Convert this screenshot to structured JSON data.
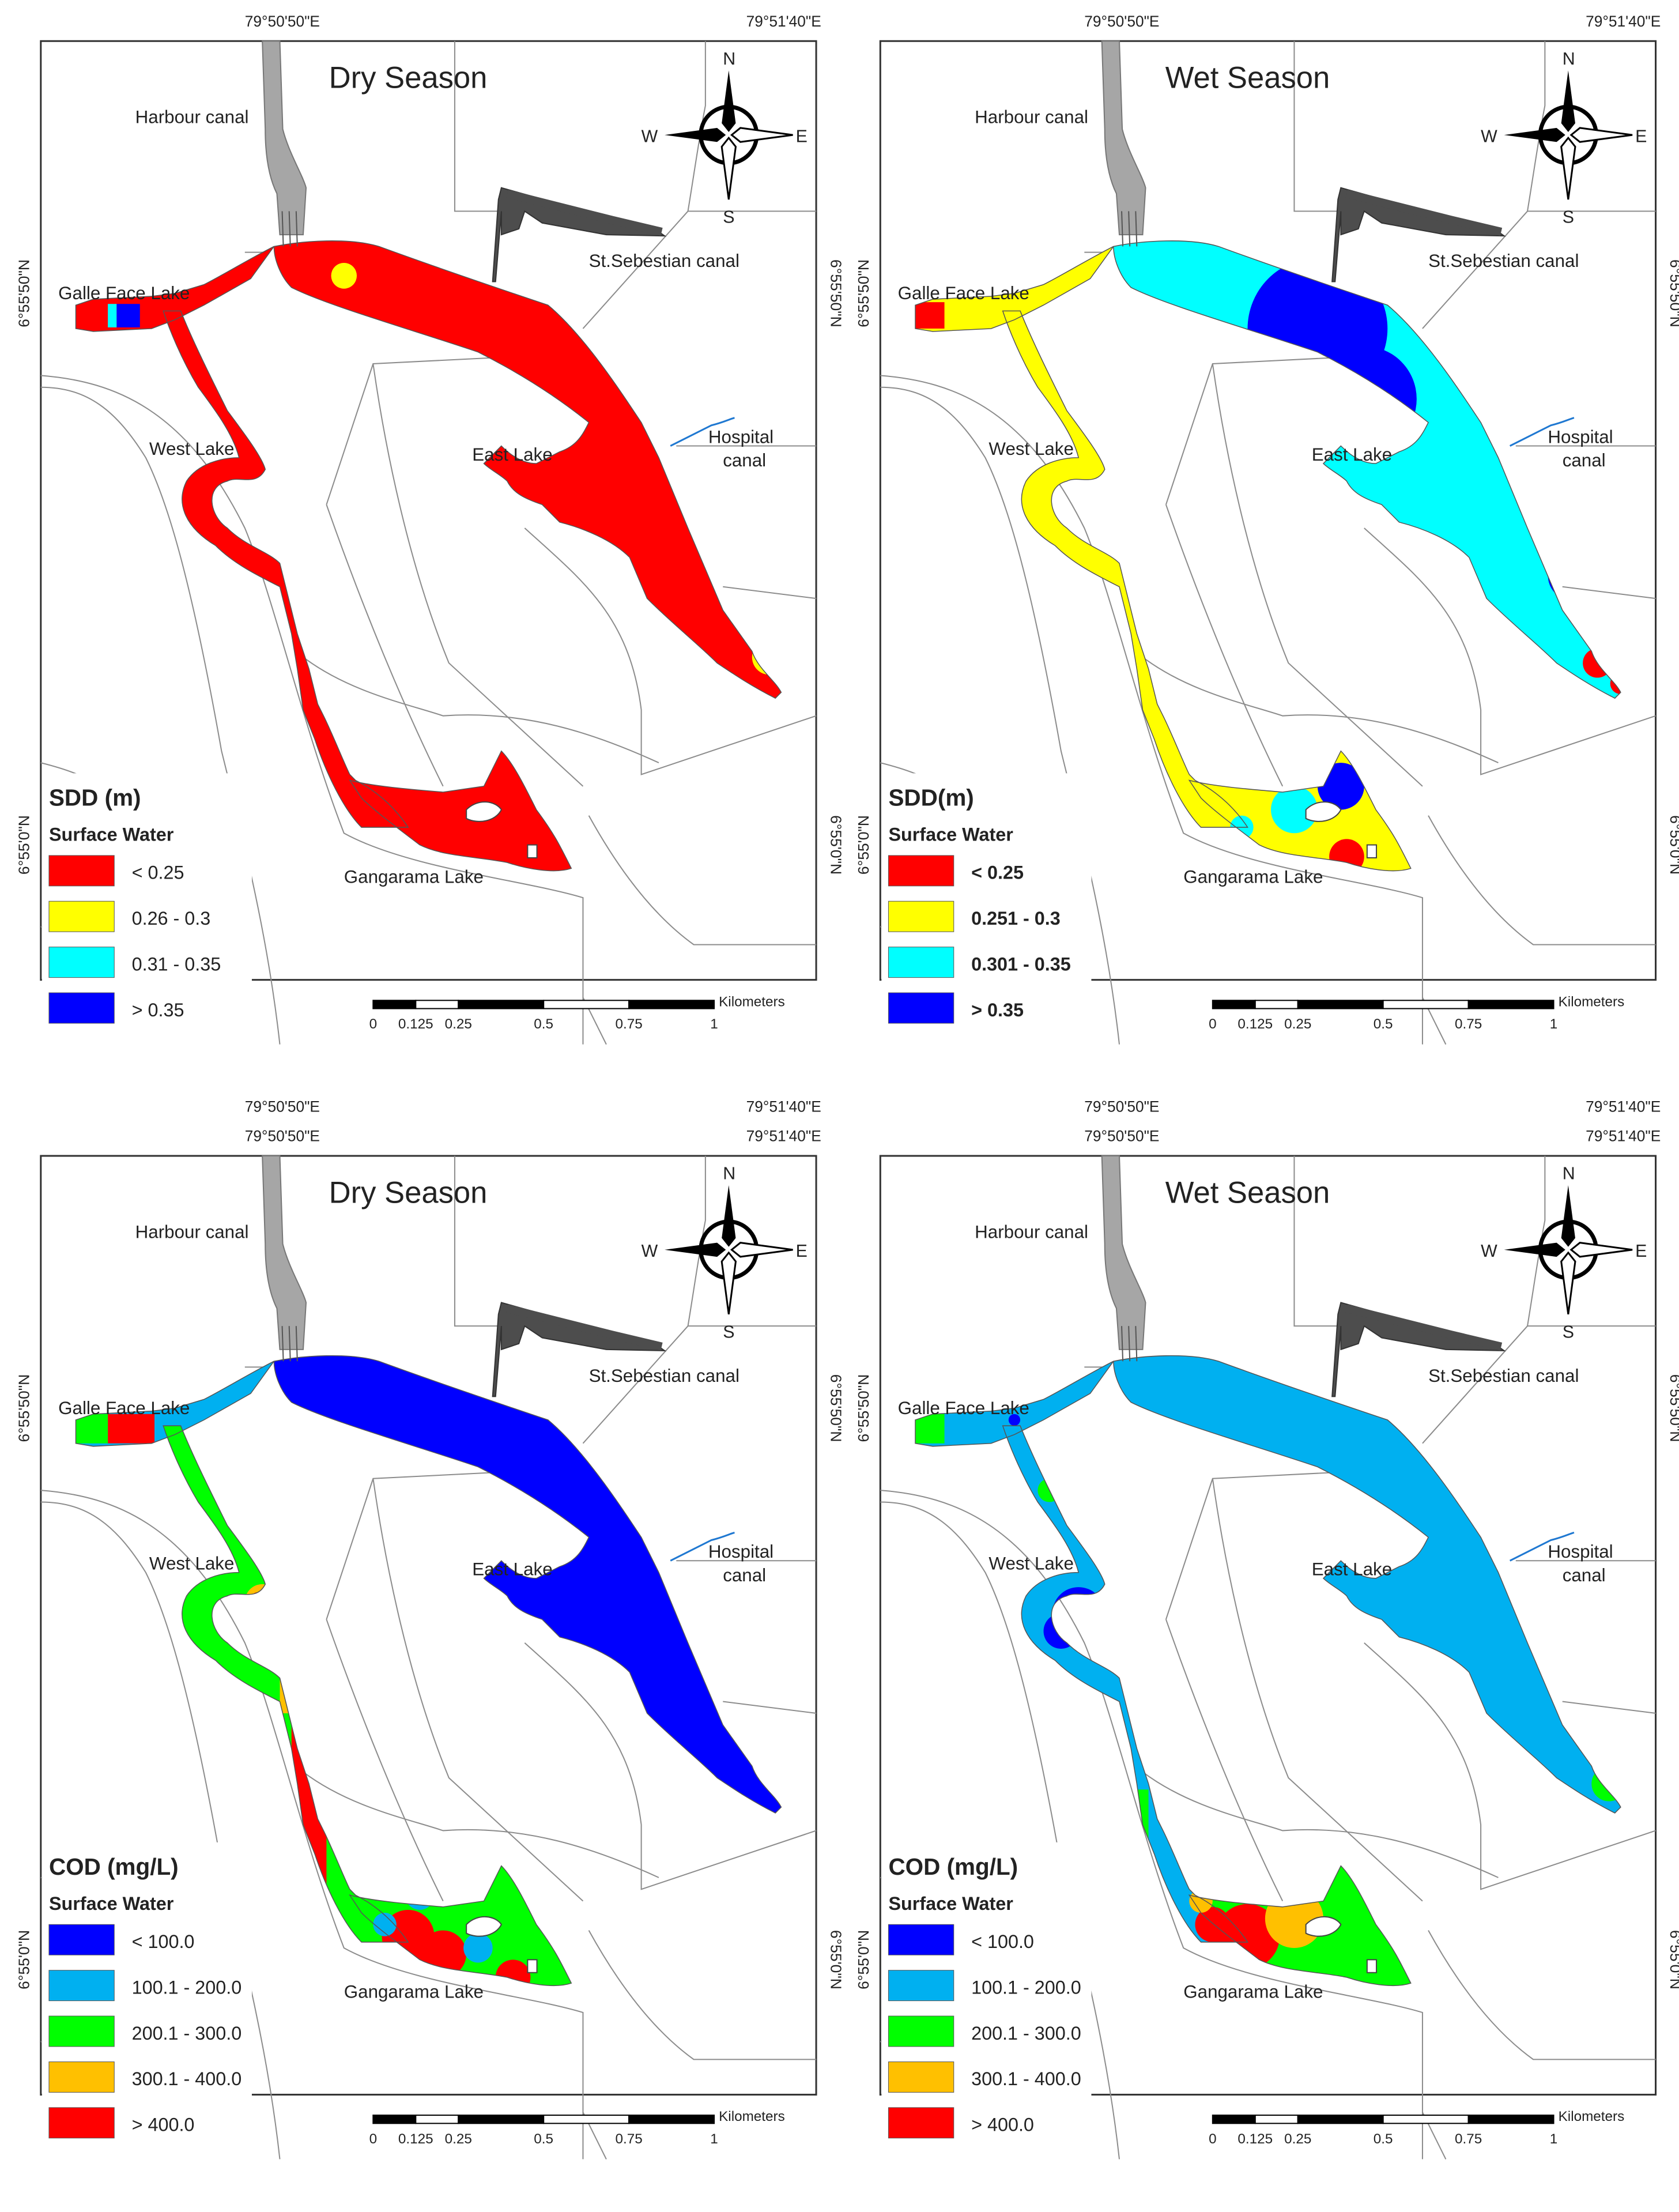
{
  "panels": [
    {
      "title": "Dry Season",
      "legend": {
        "title": "SDD (m)",
        "subtitle": "Surface Water",
        "bold": false,
        "classes": [
          {
            "label": "< 0.25",
            "color": "#ff0000"
          },
          {
            "label": "0.26 - 0.3",
            "color": "#ffff00"
          },
          {
            "label": "0.31 - 0.35",
            "color": "#00ffff"
          },
          {
            "label": "> 0.35",
            "color": "#0000ff"
          }
        ]
      }
    },
    {
      "title": "Wet Season",
      "legend": {
        "title": "SDD(m)",
        "subtitle": "Surface Water",
        "bold": true,
        "classes": [
          {
            "label": "< 0.25",
            "color": "#ff0000"
          },
          {
            "label": "0.251 - 0.3",
            "color": "#ffff00"
          },
          {
            "label": "0.301 - 0.35",
            "color": "#00ffff"
          },
          {
            "label": "> 0.35",
            "color": "#0000ff"
          }
        ]
      }
    },
    {
      "title": "Dry Season",
      "legend": {
        "title": "COD (mg/L)",
        "subtitle": "Surface Water",
        "bold": false,
        "classes": [
          {
            "label": "< 100.0",
            "color": "#0000ff"
          },
          {
            "label": "100.1 - 200.0",
            "color": "#00b0f0"
          },
          {
            "label": "200.1 - 300.0",
            "color": "#00ff00"
          },
          {
            "label": "300.1 - 400.0",
            "color": "#ffc000"
          },
          {
            "label": "> 400.0",
            "color": "#ff0000"
          }
        ]
      }
    },
    {
      "title": "Wet Season",
      "legend": {
        "title": "COD (mg/L)",
        "subtitle": "Surface Water",
        "bold": false,
        "classes": [
          {
            "label": "< 100.0",
            "color": "#0000ff"
          },
          {
            "label": "100.1 - 200.0",
            "color": "#00b0f0"
          },
          {
            "label": "200.1 - 300.0",
            "color": "#00ff00"
          },
          {
            "label": "300.1 - 400.0",
            "color": "#ffc000"
          },
          {
            "label": "> 400.0",
            "color": "#ff0000"
          }
        ]
      }
    }
  ],
  "place_labels": {
    "harbour": "Harbour canal",
    "sebestian": "St.Sebestian canal",
    "galle_face": "Galle Face Lake",
    "west_lake": "West Lake",
    "east_lake": "East Lake",
    "hospital_1": "Hospital",
    "hospital_2": "canal",
    "gangarama": "Gangarama Lake"
  },
  "coordinates": {
    "lon_left": "79°50'50\"E",
    "lon_right": "79°51'40\"E",
    "lat_top": "6°55'50\"N",
    "lat_bottom": "6°55'0\"N"
  },
  "compass": {
    "n": "N",
    "s": "S",
    "e": "E",
    "w": "W"
  },
  "scale_bar": {
    "unit": "Kilometers",
    "ticks": [
      "0",
      "0.125",
      "0.25",
      "0.5",
      "0.75",
      "1"
    ]
  },
  "colors": {
    "frame": "#333333",
    "road": "#8c8c8c",
    "canal_light": "#a6a6a6",
    "canal_dark": "#4d4d4d",
    "hospital_canal": "#1f78d1"
  }
}
